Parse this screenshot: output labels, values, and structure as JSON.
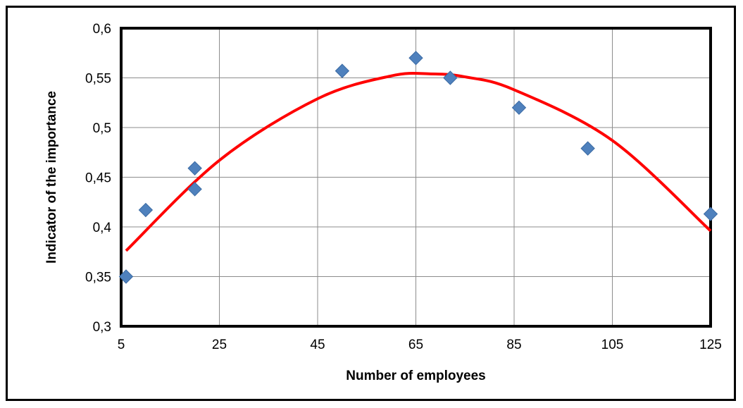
{
  "chart_data": {
    "type": "scatter",
    "xlabel": "Number of employees",
    "ylabel": "Indicator of the importance",
    "xlim": [
      5,
      125
    ],
    "ylim": [
      0.3,
      0.6
    ],
    "x_ticks": [
      "5",
      "25",
      "45",
      "65",
      "85",
      "105",
      "125"
    ],
    "y_ticks": [
      "0,3",
      "0,35",
      "0,4",
      "0,45",
      "0,5",
      "0,55",
      "0,6"
    ],
    "grid": true,
    "series": [
      {
        "points": [
          {
            "x": 6,
            "y": 0.35
          },
          {
            "x": 10,
            "y": 0.417
          },
          {
            "x": 20,
            "y": 0.438
          },
          {
            "x": 20,
            "y": 0.459
          },
          {
            "x": 50,
            "y": 0.557
          },
          {
            "x": 65,
            "y": 0.57
          },
          {
            "x": 72,
            "y": 0.55
          },
          {
            "x": 86,
            "y": 0.52
          },
          {
            "x": 100,
            "y": 0.479
          },
          {
            "x": 125,
            "y": 0.413
          }
        ],
        "marker": "diamond",
        "color": "#4F81BD"
      }
    ],
    "trendline": {
      "type": "polynomial",
      "color": "#FF0000",
      "curve": [
        {
          "x": 6,
          "y": 0.376
        },
        {
          "x": 25,
          "y": 0.467
        },
        {
          "x": 45,
          "y": 0.529
        },
        {
          "x": 60,
          "y": 0.552
        },
        {
          "x": 68,
          "y": 0.554
        },
        {
          "x": 75,
          "y": 0.551
        },
        {
          "x": 85,
          "y": 0.538
        },
        {
          "x": 105,
          "y": 0.487
        },
        {
          "x": 125,
          "y": 0.396
        }
      ]
    }
  }
}
